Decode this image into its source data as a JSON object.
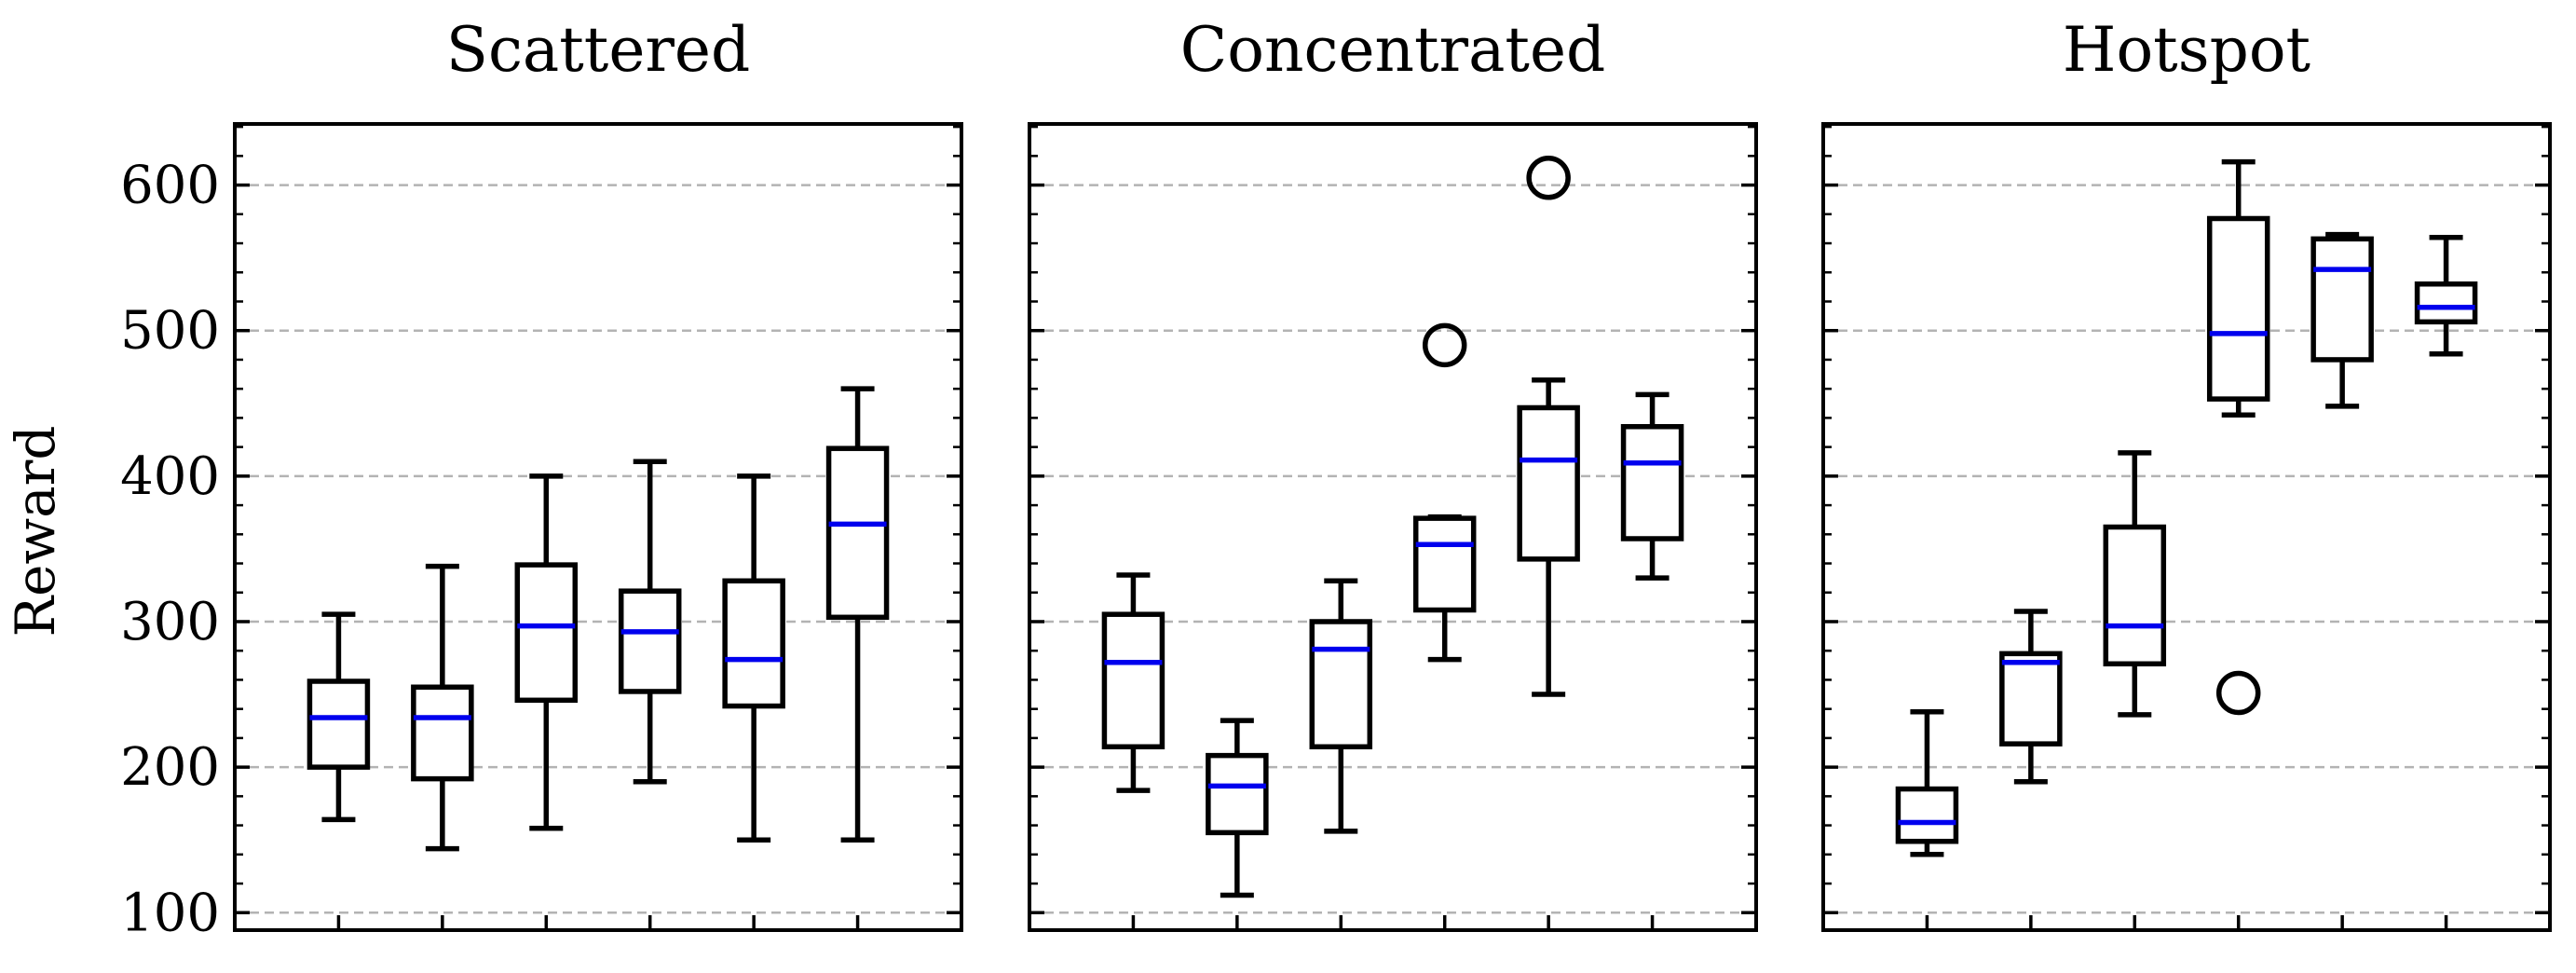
{
  "chart_data": {
    "type": "box",
    "ylabel": "Reward",
    "ylim": [
      88,
      642
    ],
    "yticks": [
      100,
      200,
      300,
      400,
      500,
      600
    ],
    "grid": {
      "y": true,
      "style": "dashed",
      "color": "#b3b3b3"
    },
    "box_colors": {
      "outline": "#000000",
      "median": "#0000ee"
    },
    "panels": [
      {
        "title": "Scattered",
        "boxes": [
          {
            "min": 164,
            "q1": 200,
            "median": 234,
            "q3": 259,
            "max": 305,
            "outliers": []
          },
          {
            "min": 144,
            "q1": 192,
            "median": 234,
            "q3": 255,
            "max": 338,
            "outliers": []
          },
          {
            "min": 158,
            "q1": 246,
            "median": 297,
            "q3": 339,
            "max": 400,
            "outliers": []
          },
          {
            "min": 190,
            "q1": 252,
            "median": 293,
            "q3": 321,
            "max": 410,
            "outliers": []
          },
          {
            "min": 150,
            "q1": 242,
            "median": 274,
            "q3": 328,
            "max": 400,
            "outliers": []
          },
          {
            "min": 150,
            "q1": 303,
            "median": 367,
            "q3": 419,
            "max": 460,
            "outliers": []
          }
        ]
      },
      {
        "title": "Concentrated",
        "boxes": [
          {
            "min": 184,
            "q1": 214,
            "median": 272,
            "q3": 305,
            "max": 332,
            "outliers": []
          },
          {
            "min": 112,
            "q1": 155,
            "median": 187,
            "q3": 208,
            "max": 232,
            "outliers": []
          },
          {
            "min": 156,
            "q1": 214,
            "median": 281,
            "q3": 300,
            "max": 328,
            "outliers": []
          },
          {
            "min": 274,
            "q1": 308,
            "median": 353,
            "q3": 371,
            "max": 372,
            "outliers": [
              490
            ]
          },
          {
            "min": 250,
            "q1": 343,
            "median": 411,
            "q3": 447,
            "max": 466,
            "outliers": [
              605
            ]
          },
          {
            "min": 330,
            "q1": 357,
            "median": 409,
            "q3": 434,
            "max": 456,
            "outliers": []
          }
        ]
      },
      {
        "title": "Hotspot",
        "boxes": [
          {
            "min": 140,
            "q1": 149,
            "median": 162,
            "q3": 185,
            "max": 238,
            "outliers": []
          },
          {
            "min": 190,
            "q1": 216,
            "median": 272,
            "q3": 278,
            "max": 307,
            "outliers": []
          },
          {
            "min": 236,
            "q1": 271,
            "median": 297,
            "q3": 365,
            "max": 416,
            "outliers": []
          },
          {
            "min": 442,
            "q1": 453,
            "median": 498,
            "q3": 577,
            "max": 616,
            "outliers": [
              251
            ]
          },
          {
            "min": 448,
            "q1": 480,
            "median": 542,
            "q3": 563,
            "max": 566,
            "outliers": []
          },
          {
            "min": 484,
            "q1": 506,
            "median": 516,
            "q3": 532,
            "max": 564,
            "outliers": []
          }
        ]
      }
    ]
  }
}
